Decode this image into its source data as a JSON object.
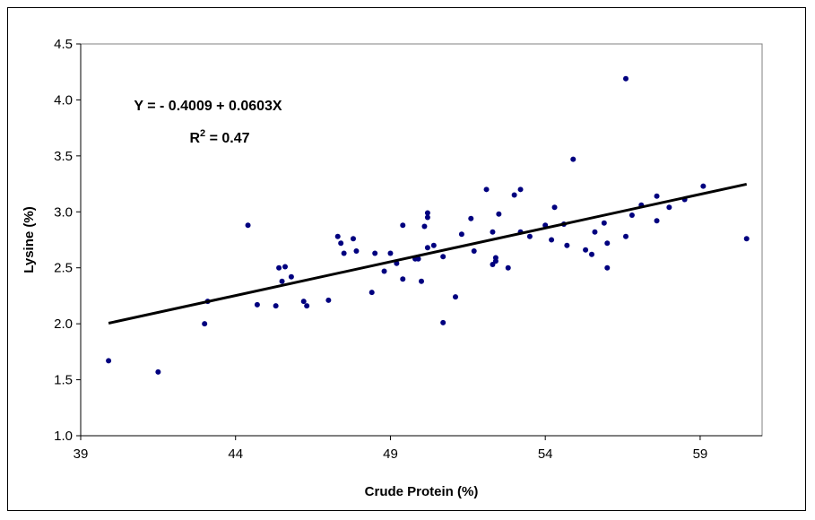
{
  "chart_data": {
    "type": "scatter",
    "title": "",
    "xlabel": "Crude Protein (%)",
    "ylabel": "Lysine (%)",
    "xlim": [
      39,
      61
    ],
    "ylim": [
      1.0,
      4.5
    ],
    "xticks": [
      "39",
      "44",
      "49",
      "54",
      "59"
    ],
    "yticks": [
      "1.0",
      "1.5",
      "2.0",
      "2.5",
      "3.0",
      "3.5",
      "4.0",
      "4.5"
    ],
    "grid": false,
    "point_color": "#00007f",
    "line_color": "#000000",
    "annotations": {
      "equation": "Y = - 0.4009 + 0.0603X",
      "r2_prefix": "R",
      "r2_exp": "2",
      "r2_suffix": " = 0.47"
    },
    "trendline": {
      "intercept": -0.4009,
      "slope": 0.0603,
      "x": [
        39.9,
        60.5
      ]
    },
    "points": [
      [
        39.9,
        1.67
      ],
      [
        41.5,
        1.57
      ],
      [
        43.0,
        2.0
      ],
      [
        43.1,
        2.2
      ],
      [
        44.4,
        2.88
      ],
      [
        44.7,
        2.17
      ],
      [
        45.3,
        2.16
      ],
      [
        45.4,
        2.5
      ],
      [
        45.5,
        2.38
      ],
      [
        45.6,
        2.51
      ],
      [
        45.8,
        2.42
      ],
      [
        46.2,
        2.2
      ],
      [
        46.3,
        2.16
      ],
      [
        47.0,
        2.21
      ],
      [
        47.3,
        2.78
      ],
      [
        47.4,
        2.72
      ],
      [
        47.5,
        2.63
      ],
      [
        47.8,
        2.76
      ],
      [
        47.9,
        2.65
      ],
      [
        48.4,
        2.28
      ],
      [
        48.5,
        2.63
      ],
      [
        48.8,
        2.47
      ],
      [
        49.0,
        2.63
      ],
      [
        49.2,
        2.54
      ],
      [
        49.4,
        2.88
      ],
      [
        49.4,
        2.4
      ],
      [
        49.8,
        2.58
      ],
      [
        49.9,
        2.58
      ],
      [
        50.0,
        2.38
      ],
      [
        50.1,
        2.87
      ],
      [
        50.2,
        2.95
      ],
      [
        50.2,
        2.99
      ],
      [
        50.2,
        2.68
      ],
      [
        50.4,
        2.7
      ],
      [
        50.7,
        2.01
      ],
      [
        50.7,
        2.6
      ],
      [
        51.1,
        2.24
      ],
      [
        51.3,
        2.8
      ],
      [
        51.6,
        2.94
      ],
      [
        51.7,
        2.65
      ],
      [
        52.1,
        3.2
      ],
      [
        52.3,
        2.53
      ],
      [
        52.3,
        2.82
      ],
      [
        52.4,
        2.59
      ],
      [
        52.4,
        2.56
      ],
      [
        52.5,
        2.98
      ],
      [
        52.8,
        2.5
      ],
      [
        53.0,
        3.15
      ],
      [
        53.2,
        3.2
      ],
      [
        53.2,
        2.82
      ],
      [
        53.5,
        2.78
      ],
      [
        54.0,
        2.88
      ],
      [
        54.2,
        2.75
      ],
      [
        54.3,
        3.04
      ],
      [
        54.6,
        2.89
      ],
      [
        54.7,
        2.7
      ],
      [
        54.9,
        3.47
      ],
      [
        55.3,
        2.66
      ],
      [
        55.5,
        2.62
      ],
      [
        55.6,
        2.82
      ],
      [
        55.9,
        2.9
      ],
      [
        56.0,
        2.5
      ],
      [
        56.0,
        2.72
      ],
      [
        56.6,
        4.19
      ],
      [
        56.6,
        2.78
      ],
      [
        56.8,
        2.97
      ],
      [
        57.1,
        3.06
      ],
      [
        57.6,
        3.14
      ],
      [
        57.6,
        2.92
      ],
      [
        58.0,
        3.04
      ],
      [
        58.5,
        3.11
      ],
      [
        59.1,
        3.23
      ],
      [
        60.5,
        2.76
      ]
    ]
  }
}
